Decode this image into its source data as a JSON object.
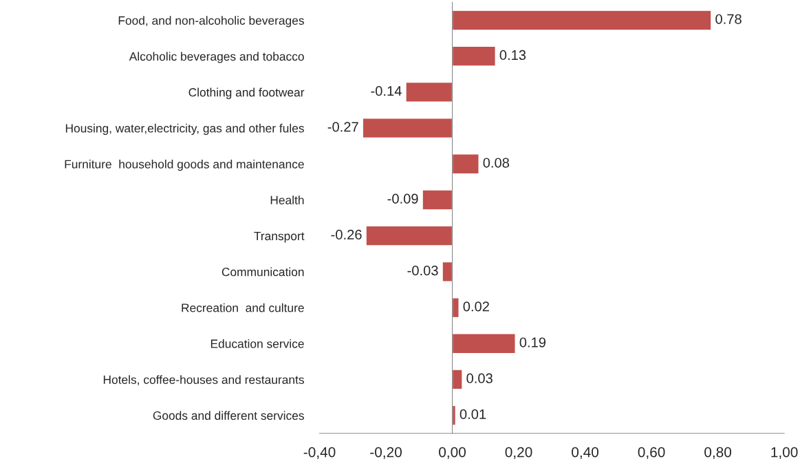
{
  "chart_data": {
    "type": "bar",
    "orientation": "horizontal",
    "categories": [
      "Food, and non-alcoholic beverages",
      "Alcoholic beverages and tobacco",
      "Clothing and footwear",
      "Housing, water,electricity, gas and other fules",
      "Furniture  household goods and maintenance",
      "Health",
      "Transport",
      "Communication",
      "Recreation  and culture",
      "Education service",
      "Hotels, coffee-houses and restaurants",
      "Goods and different services"
    ],
    "values": [
      0.78,
      0.13,
      -0.14,
      -0.27,
      0.08,
      -0.09,
      -0.26,
      -0.03,
      0.02,
      0.19,
      0.03,
      0.01
    ],
    "color": "#c0504d",
    "xlim": [
      -0.4,
      1.0
    ],
    "xticks": [
      {
        "value": -0.4,
        "label": "-0,40"
      },
      {
        "value": -0.2,
        "label": "-0,20"
      },
      {
        "value": 0,
        "label": "0,00"
      },
      {
        "value": 0.2,
        "label": "0,20"
      },
      {
        "value": 0.4,
        "label": "0,40"
      },
      {
        "value": 0.6,
        "label": "0,60"
      },
      {
        "value": 0.8,
        "label": "0,80"
      },
      {
        "value": 1.0,
        "label": "1,00"
      }
    ],
    "data_labels": true
  }
}
